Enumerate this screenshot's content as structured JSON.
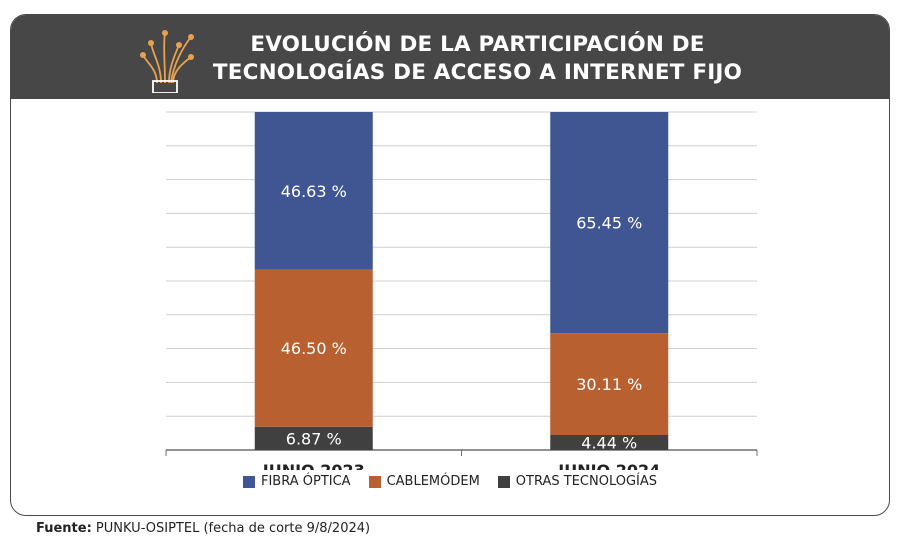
{
  "header": {
    "title_line1": "EVOLUCIÓN DE LA PARTICIPACIÓN DE",
    "title_line2": "TECNOLOGÍAS DE ACCESO A INTERNET FIJO",
    "logo_icon": "fiber-optic-icon"
  },
  "chart_data": {
    "type": "bar",
    "stacked": true,
    "categories": [
      "JUNIO 2023",
      "JUNIO 2024"
    ],
    "series": [
      {
        "name": "OTRAS TECNOLOGÍAS",
        "values": [
          6.87,
          4.44
        ],
        "labels": [
          "6.87 %",
          "4.44 %"
        ],
        "color": "#404040"
      },
      {
        "name": "CABLEMÓDEM",
        "values": [
          46.5,
          30.11
        ],
        "labels": [
          "46.50 %",
          "30.11 %"
        ],
        "color": "#b8602f"
      },
      {
        "name": "FIBRA ÓPTICA",
        "values": [
          46.63,
          65.45
        ],
        "labels": [
          "46.63 %",
          "65.45 %"
        ],
        "color": "#3f5693"
      }
    ],
    "legend_order": [
      "FIBRA ÓPTICA",
      "CABLEMÓDEM",
      "OTRAS TECNOLOGÍAS"
    ],
    "ylim": [
      0,
      100
    ],
    "grid": true,
    "legend_position": "bottom"
  },
  "source": {
    "prefix": "Fuente:",
    "text": " PUNKU-OSIPTEL (fecha de corte 9/8/2024)"
  }
}
